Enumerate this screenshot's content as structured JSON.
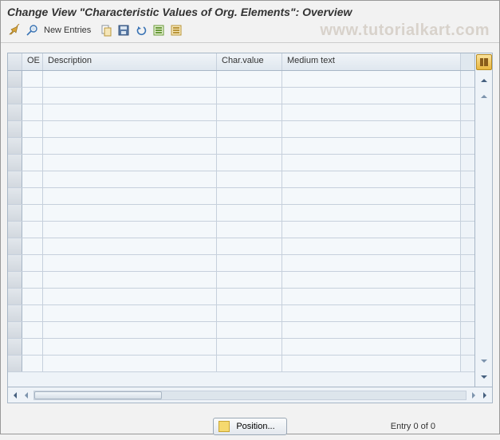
{
  "title": "Change View \"Characteristic Values of Org. Elements\": Overview",
  "watermark": "www.tutorialkart.com",
  "toolbar": {
    "new_entries_label": "New Entries"
  },
  "table": {
    "columns": {
      "oe": "OE",
      "description": "Description",
      "char_value": "Char.value",
      "medium_text": "Medium text"
    },
    "column_widths": {
      "sel": 18,
      "oe": 26,
      "desc": 218,
      "char": 82,
      "med": 224
    },
    "row_count": 18,
    "colors": {
      "header_bg_top": "#f0f4f8",
      "header_bg_bottom": "#dfe7ef",
      "row_bg": "#f4f8fb",
      "border": "#c6d0dc",
      "outer_border": "#a7b6c6"
    }
  },
  "footer": {
    "position_label": "Position...",
    "entry_text": "Entry 0 of 0"
  }
}
